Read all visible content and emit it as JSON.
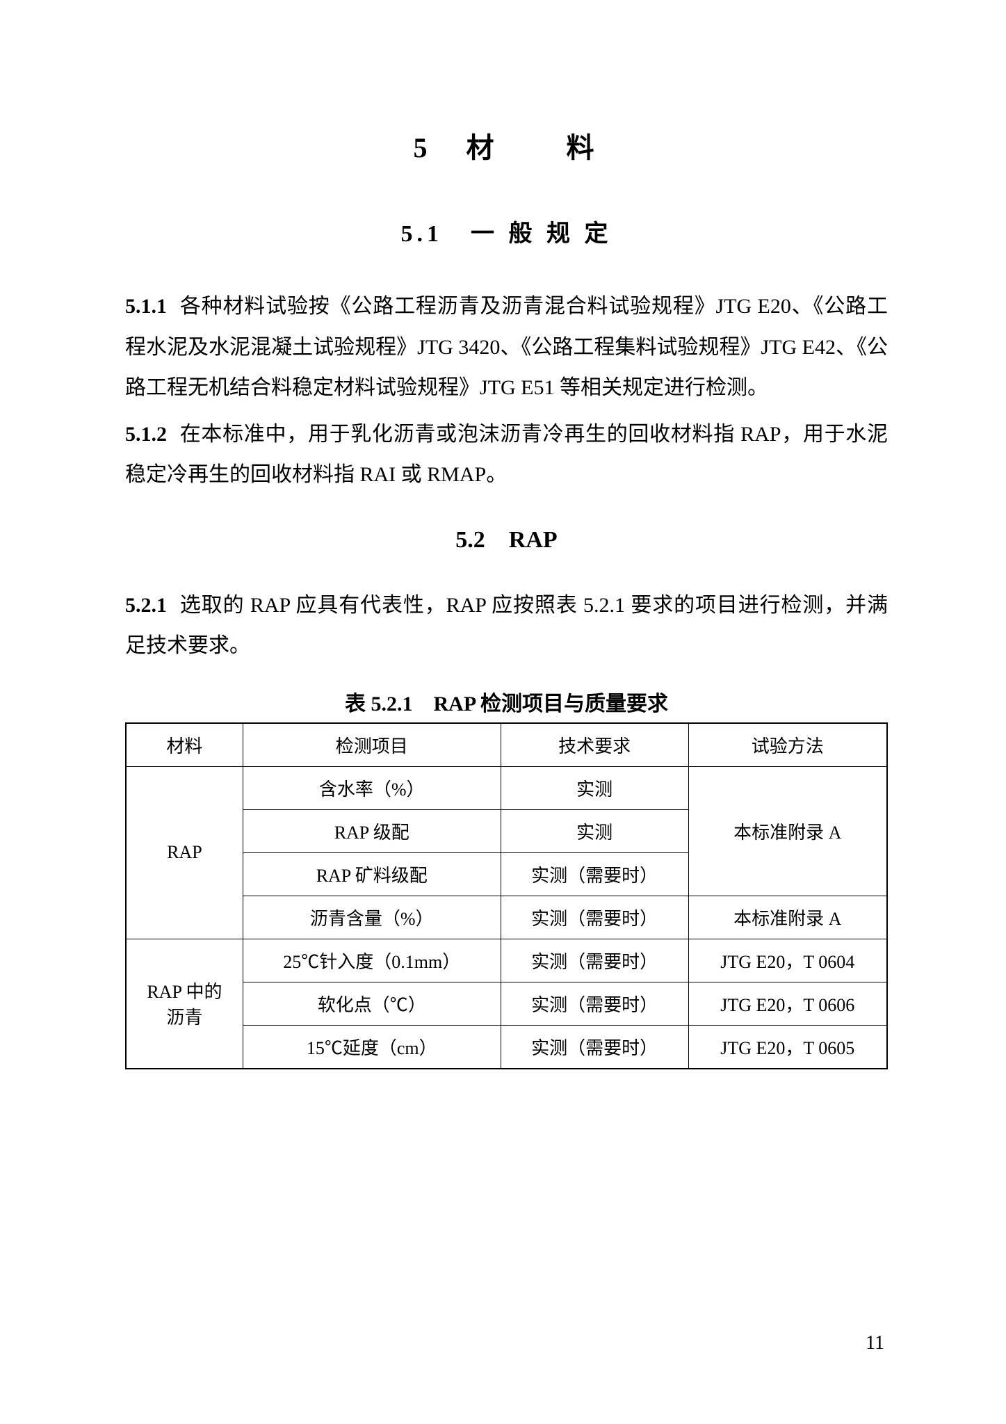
{
  "chapter": {
    "number": "5",
    "title": "材　　料"
  },
  "section1": {
    "number": "5.1",
    "title": "一 般 规 定"
  },
  "para511": {
    "num": "5.1.1",
    "text": "各种材料试验按《公路工程沥青及沥青混合料试验规程》JTG E20、《公路工程水泥及水泥混凝土试验规程》JTG 3420、《公路工程集料试验规程》JTG E42、《公路工程无机结合料稳定材料试验规程》JTG E51 等相关规定进行检测。"
  },
  "para512": {
    "num": "5.1.2",
    "text": "在本标准中，用于乳化沥青或泡沫沥青冷再生的回收材料指 RAP，用于水泥稳定冷再生的回收材料指 RAI 或 RMAP。"
  },
  "section2": {
    "number": "5.2",
    "title": "RAP"
  },
  "para521": {
    "num": "5.2.1",
    "text": "选取的 RAP 应具有代表性，RAP 应按照表 5.2.1 要求的项目进行检测，并满足技术要求。"
  },
  "tableCaption": "表 5.2.1　RAP 检测项目与质量要求",
  "table": {
    "headers": {
      "c1": "材料",
      "c2": "检测项目",
      "c3": "技术要求",
      "c4": "试验方法"
    },
    "rap_label": "RAP",
    "rap_asphalt_label": "RAP 中的\n沥青",
    "rows": [
      {
        "item": "含水率（%）",
        "req": "实测",
        "method": "本标准附录 A"
      },
      {
        "item": "RAP 级配",
        "req": "实测",
        "method": ""
      },
      {
        "item": "RAP 矿料级配",
        "req": "实测（需要时）",
        "method": ""
      },
      {
        "item": "沥青含量（%）",
        "req": "实测（需要时）",
        "method": "本标准附录 A"
      },
      {
        "item": "25℃针入度（0.1mm）",
        "req": "实测（需要时）",
        "method": "JTG E20，T 0604"
      },
      {
        "item": "软化点（℃）",
        "req": "实测（需要时）",
        "method": "JTG E20，T 0606"
      },
      {
        "item": "15℃延度（cm）",
        "req": "实测（需要时）",
        "method": "JTG E20，T 0605"
      }
    ]
  },
  "pageNumber": "11"
}
